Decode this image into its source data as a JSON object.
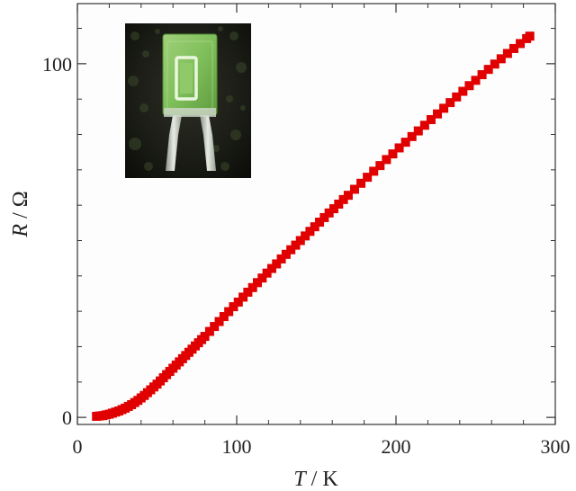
{
  "chart_data": {
    "type": "scatter",
    "xlabel_var": "T",
    "xlabel_unit": " / K",
    "ylabel_var": "R",
    "ylabel_unit": " / Ω",
    "xlim": [
      0,
      300
    ],
    "ylim": [
      -2,
      117
    ],
    "x_ticks": [
      0,
      100,
      200,
      300
    ],
    "x_tick_labels": [
      "0",
      "100",
      "200",
      "300"
    ],
    "y_ticks": [
      0,
      100
    ],
    "y_tick_labels": [
      "0",
      "100"
    ],
    "x_minor_step": 20,
    "y_minor_step": 10,
    "grid": false,
    "marker": "square",
    "marker_color": "#e00000",
    "inset": "photo of green resistance thermometer sensor chip with two metal leads",
    "series": [
      {
        "x": [
          12,
          14,
          16,
          18,
          20,
          22,
          24,
          26,
          28,
          30,
          32,
          34,
          36,
          38,
          40,
          42,
          44,
          46,
          48,
          50,
          52,
          54,
          56,
          58,
          60,
          62,
          64,
          66,
          68,
          70,
          72,
          74,
          76,
          78,
          80,
          83,
          86,
          89,
          92,
          95,
          98,
          101,
          104,
          107,
          110,
          113,
          116,
          119,
          122,
          125,
          128,
          131,
          134,
          137,
          140,
          143,
          146,
          149,
          152,
          155,
          158,
          161,
          164,
          167,
          170,
          174,
          178,
          182,
          186,
          190,
          194,
          198,
          202,
          206,
          210,
          214,
          218,
          222,
          226,
          230,
          234,
          238,
          242,
          246,
          250,
          254,
          258,
          262,
          266,
          270,
          274,
          278,
          282,
          284
        ],
        "y": [
          0.3,
          0.4,
          0.5,
          0.7,
          0.9,
          1.2,
          1.5,
          1.8,
          2.2,
          2.6,
          3.1,
          3.6,
          4.2,
          4.8,
          5.5,
          6.2,
          7.0,
          7.8,
          8.6,
          9.4,
          10.3,
          11.2,
          12.1,
          13.0,
          13.9,
          14.8,
          15.7,
          16.6,
          17.5,
          18.4,
          19.3,
          20.2,
          21.1,
          22.0,
          22.9,
          24.3,
          25.7,
          27.1,
          28.5,
          29.9,
          31.3,
          32.6,
          34.0,
          35.4,
          36.7,
          38.1,
          39.4,
          40.8,
          42.1,
          43.4,
          44.8,
          46.1,
          47.4,
          48.7,
          50.0,
          51.3,
          52.6,
          53.9,
          55.2,
          56.5,
          57.8,
          59.0,
          60.3,
          61.6,
          62.8,
          64.5,
          66.2,
          67.9,
          69.6,
          71.2,
          72.9,
          74.5,
          76.2,
          77.8,
          79.4,
          81.0,
          82.6,
          84.2,
          85.8,
          87.4,
          89.0,
          90.6,
          92.2,
          93.8,
          95.3,
          96.9,
          98.4,
          99.9,
          101.4,
          102.9,
          104.3,
          105.7,
          107.1,
          107.8
        ]
      }
    ]
  }
}
